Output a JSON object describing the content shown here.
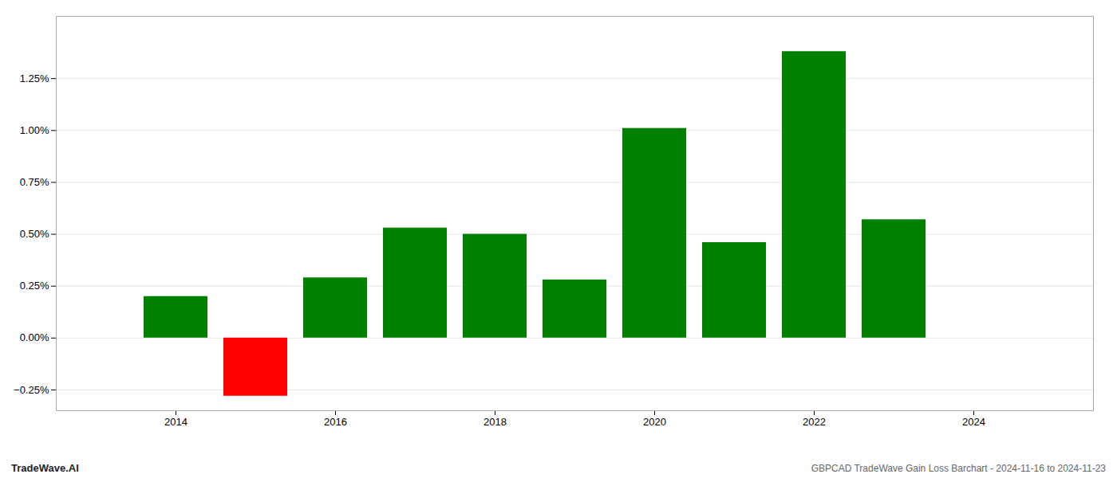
{
  "chart_data": {
    "type": "bar",
    "title": "GBPCAD TradeWave Gain Loss Barchart - 2024-11-16 to 2024-11-23",
    "annotations": [
      "TradeWave.AI"
    ],
    "x": [
      2014,
      2015,
      2016,
      2017,
      2018,
      2019,
      2020,
      2021,
      2022,
      2023
    ],
    "values": [
      0.002,
      -0.0028,
      0.0029,
      0.0053,
      0.005,
      0.0028,
      0.0101,
      0.0046,
      0.0138,
      0.0057
    ],
    "colors": [
      "#008000",
      "#ff0000",
      "#008000",
      "#008000",
      "#008000",
      "#008000",
      "#008000",
      "#008000",
      "#008000",
      "#008000"
    ],
    "xlim": [
      2012.5,
      2025.5
    ],
    "xticks": [
      2014,
      2016,
      2018,
      2020,
      2022,
      2024
    ],
    "ylim": [
      -0.0035,
      0.0155
    ],
    "yticks": [
      {
        "value": -0.0025,
        "label": "−0.25%"
      },
      {
        "value": 0.0,
        "label": "0.00%"
      },
      {
        "value": 0.0025,
        "label": "0.25%"
      },
      {
        "value": 0.005,
        "label": "0.50%"
      },
      {
        "value": 0.0075,
        "label": "0.75%"
      },
      {
        "value": 0.01,
        "label": "1.00%"
      },
      {
        "value": 0.0125,
        "label": "1.25%"
      }
    ],
    "grid": true
  }
}
